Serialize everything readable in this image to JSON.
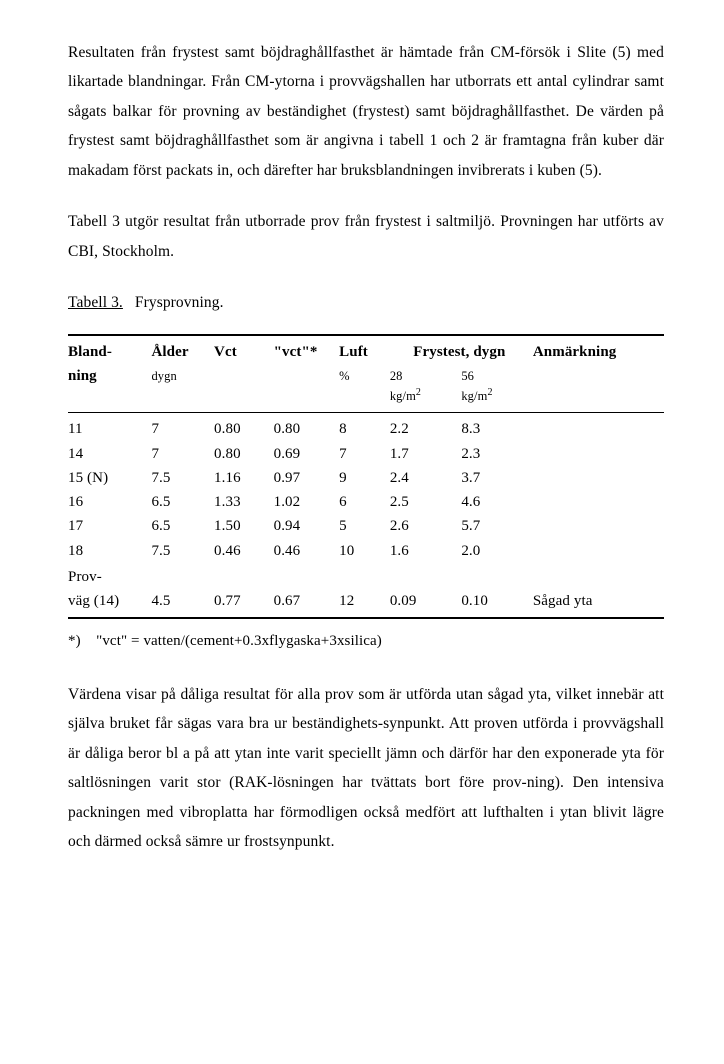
{
  "para1": "Resultaten från frystest samt böjdraghållfasthet är hämtade från CM-försök i Slite (5) med likartade blandningar. Från CM-ytorna i provvägshallen har utborrats ett antal cylindrar samt sågats balkar för provning av beständighet (frystest) samt böjdraghållfasthet. De värden på frystest samt böjdraghållfasthet som är angivna i tabell 1 och 2 är framtagna från kuber där makadam först packats in, och därefter har bruksblandningen invibrerats i kuben (5).",
  "para2": "Tabell 3 utgör resultat från utborrade prov från frystest i saltmiljö. Provningen har utförts av CBI, Stockholm.",
  "table_label_prefix": "Tabell 3.",
  "table_label_title": "Frysprovning.",
  "columns": {
    "bland": "Bland-",
    "ning": "ning",
    "alder": "Ålder",
    "alder_sub": "dygn",
    "vct": "Vct",
    "vct_star": "\"vct\"*",
    "luft": "Luft",
    "luft_sub": "%",
    "frys_head": "Frystest, dygn",
    "f28": "28",
    "f56": "56",
    "kgm2": "kg/m",
    "anm": "Anmärkning"
  },
  "rows": [
    {
      "b": "11",
      "a": "7",
      "v": "0.80",
      "vs": "0.80",
      "l": "8",
      "f28": "2.2",
      "f56": "8.3",
      "an": ""
    },
    {
      "b": "14",
      "a": "7",
      "v": "0.80",
      "vs": "0.69",
      "l": "7",
      "f28": "1.7",
      "f56": "2.3",
      "an": ""
    },
    {
      "b": "15 (N)",
      "a": "7.5",
      "v": "1.16",
      "vs": "0.97",
      "l": "9",
      "f28": "2.4",
      "f56": "3.7",
      "an": ""
    },
    {
      "b": "16",
      "a": "6.5",
      "v": "1.33",
      "vs": "1.02",
      "l": "6",
      "f28": "2.5",
      "f56": "4.6",
      "an": ""
    },
    {
      "b": "17",
      "a": "6.5",
      "v": "1.50",
      "vs": "0.94",
      "l": "5",
      "f28": "2.6",
      "f56": "5.7",
      "an": ""
    },
    {
      "b": "18",
      "a": "7.5",
      "v": "0.46",
      "vs": "0.46",
      "l": "10",
      "f28": "1.6",
      "f56": "2.0",
      "an": ""
    }
  ],
  "prov_label_1": "Prov-",
  "prov_label_2": "väg (14)",
  "prov": {
    "a": "4.5",
    "v": "0.77",
    "vs": "0.67",
    "l": "12",
    "f28": "0.09",
    "f56": "0.10",
    "an": "Sågad yta"
  },
  "footnote_prefix": "*)",
  "footnote_text": "\"vct\" = vatten/(cement+0.3xflygaska+3xsilica)",
  "para3": "Värdena visar på dåliga resultat för alla prov som är utförda utan sågad yta, vilket innebär att själva bruket får sägas vara bra ur beständighets-synpunkt. Att proven utförda i provvägshall är dåliga beror bl a på att ytan inte varit speciellt jämn och därför har den exponerade yta för saltlösningen varit stor (RAK-lösningen har tvättats bort före prov-ning). Den intensiva packningen med vibroplatta har förmodligen också medfört att lufthalten i ytan blivit lägre och därmed också sämre ur frostsynpunkt."
}
